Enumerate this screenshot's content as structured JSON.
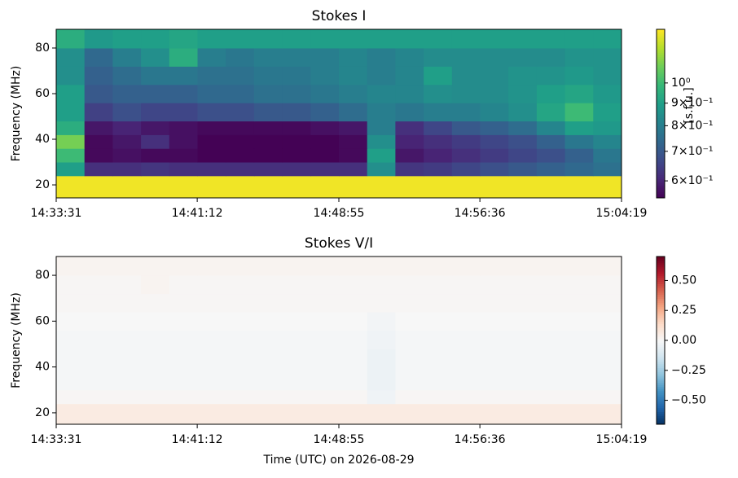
{
  "chart_data": [
    {
      "type": "heatmap",
      "title": "Stokes I",
      "y_label": "Frequency (MHz)",
      "x_edges": [
        0,
        92.4,
        184.8,
        277.2,
        369.6,
        462,
        554.4,
        646.8,
        739.2,
        831.6,
        924,
        1016.4,
        1108.8,
        1201.2,
        1293.6,
        1386,
        1478.4,
        1570.8,
        1663.2,
        1755.6,
        1848
      ],
      "y_edges": [
        14.3,
        24,
        30,
        36,
        42,
        48,
        56,
        64,
        72,
        80,
        88.2
      ],
      "z": [
        [
          1.3,
          1.3,
          1.3,
          1.3,
          1.3,
          1.3,
          1.3,
          1.3,
          1.3,
          1.3,
          1.3,
          1.3,
          1.3,
          1.3,
          1.3,
          1.3,
          1.3,
          1.3,
          1.3,
          1.3
        ],
        [
          0.9,
          0.62,
          0.62,
          0.63,
          0.62,
          0.62,
          0.62,
          0.62,
          0.62,
          0.62,
          0.62,
          0.85,
          0.63,
          0.64,
          0.66,
          0.68,
          0.7,
          0.72,
          0.74,
          0.76
        ],
        [
          1.0,
          0.56,
          0.57,
          0.56,
          0.56,
          0.55,
          0.55,
          0.55,
          0.55,
          0.55,
          0.56,
          0.9,
          0.58,
          0.6,
          0.62,
          0.64,
          0.66,
          0.68,
          0.72,
          0.78
        ],
        [
          1.1,
          0.56,
          0.58,
          0.62,
          0.57,
          0.55,
          0.55,
          0.55,
          0.55,
          0.55,
          0.56,
          0.85,
          0.6,
          0.62,
          0.64,
          0.66,
          0.68,
          0.72,
          0.78,
          0.82
        ],
        [
          0.95,
          0.58,
          0.6,
          0.58,
          0.57,
          0.56,
          0.56,
          0.56,
          0.56,
          0.57,
          0.58,
          0.8,
          0.62,
          0.66,
          0.7,
          0.72,
          0.75,
          0.82,
          0.9,
          0.88
        ],
        [
          0.9,
          0.65,
          0.68,
          0.66,
          0.66,
          0.68,
          0.68,
          0.7,
          0.7,
          0.72,
          0.75,
          0.8,
          0.78,
          0.8,
          0.8,
          0.82,
          0.85,
          0.92,
          1.0,
          0.9
        ],
        [
          0.9,
          0.7,
          0.72,
          0.72,
          0.72,
          0.74,
          0.74,
          0.76,
          0.76,
          0.78,
          0.8,
          0.82,
          0.82,
          0.85,
          0.84,
          0.84,
          0.86,
          0.9,
          0.92,
          0.88
        ],
        [
          0.85,
          0.72,
          0.75,
          0.78,
          0.78,
          0.76,
          0.76,
          0.78,
          0.78,
          0.8,
          0.82,
          0.8,
          0.82,
          0.9,
          0.84,
          0.84,
          0.86,
          0.86,
          0.88,
          0.86
        ],
        [
          0.85,
          0.74,
          0.8,
          0.85,
          0.95,
          0.8,
          0.78,
          0.8,
          0.8,
          0.8,
          0.82,
          0.8,
          0.82,
          0.84,
          0.84,
          0.84,
          0.84,
          0.84,
          0.86,
          0.86
        ],
        [
          0.95,
          0.88,
          0.9,
          0.9,
          0.92,
          0.9,
          0.9,
          0.9,
          0.9,
          0.9,
          0.9,
          0.9,
          0.9,
          0.9,
          0.9,
          0.9,
          0.9,
          0.9,
          0.9,
          0.9
        ]
      ],
      "xlim": [
        0,
        1848
      ],
      "ylim": [
        14.3,
        88.2
      ],
      "xticks": [
        {
          "value": 0,
          "label": "14:33:31"
        },
        {
          "value": 461,
          "label": "14:41:12"
        },
        {
          "value": 924,
          "label": "14:48:55"
        },
        {
          "value": 1385,
          "label": "14:56:36"
        },
        {
          "value": 1848,
          "label": "15:04:19"
        }
      ],
      "yticks": [
        20,
        40,
        60,
        80
      ],
      "colorbar": {
        "cmap": "viridis",
        "scale": "log",
        "lim": [
          0.549,
          1.323
        ],
        "label": "[s.f.u.]",
        "ticks": [
          {
            "value": 1,
            "label": "10⁰"
          },
          {
            "value": 0.9,
            "label": "9×10⁻¹"
          },
          {
            "value": 0.8,
            "label": "8×10⁻¹"
          },
          {
            "value": 0.7,
            "label": "7×10⁻¹"
          },
          {
            "value": 0.6,
            "label": "6×10⁻¹"
          }
        ]
      }
    },
    {
      "type": "heatmap",
      "title": "Stokes V/I",
      "y_label": "Frequency (MHz)",
      "x_label": "Time (UTC) on 2026-08-29",
      "x_edges": [
        0,
        92.4,
        184.8,
        277.2,
        369.6,
        462,
        554.4,
        646.8,
        739.2,
        831.6,
        924,
        1016.4,
        1108.8,
        1201.2,
        1293.6,
        1386,
        1478.4,
        1570.8,
        1663.2,
        1755.6,
        1848
      ],
      "y_edges": [
        15.0,
        24,
        30,
        36,
        42,
        48,
        56,
        64,
        72,
        80,
        88.2
      ],
      "z": [
        [
          0.06,
          0.06,
          0.06,
          0.06,
          0.06,
          0.06,
          0.06,
          0.06,
          0.06,
          0.06,
          0.06,
          0.06,
          0.06,
          0.06,
          0.06,
          0.06,
          0.06,
          0.06,
          0.06,
          0.06
        ],
        [
          0.01,
          0.01,
          0.01,
          0.01,
          0.01,
          0.01,
          0.01,
          0.01,
          0.01,
          0.01,
          0.01,
          -0.03,
          0.01,
          0.01,
          0.01,
          0.01,
          0.01,
          0.01,
          0.01,
          0.01
        ],
        [
          -0.01,
          -0.01,
          -0.01,
          -0.01,
          -0.01,
          -0.01,
          -0.01,
          -0.01,
          -0.01,
          -0.01,
          -0.01,
          -0.04,
          -0.01,
          -0.01,
          -0.01,
          -0.01,
          -0.01,
          -0.01,
          -0.01,
          -0.01
        ],
        [
          -0.01,
          -0.01,
          -0.01,
          -0.01,
          -0.01,
          -0.01,
          -0.01,
          -0.01,
          -0.01,
          -0.01,
          -0.01,
          -0.04,
          -0.01,
          -0.01,
          -0.01,
          -0.01,
          -0.01,
          -0.01,
          -0.01,
          -0.01
        ],
        [
          -0.01,
          -0.01,
          -0.01,
          -0.01,
          -0.01,
          -0.01,
          -0.01,
          -0.01,
          -0.01,
          -0.01,
          -0.01,
          -0.04,
          -0.01,
          -0.01,
          -0.01,
          -0.01,
          -0.01,
          -0.01,
          -0.01,
          -0.01
        ],
        [
          -0.01,
          -0.01,
          -0.01,
          -0.01,
          -0.01,
          -0.01,
          -0.01,
          -0.01,
          -0.01,
          -0.01,
          -0.01,
          -0.03,
          -0.01,
          -0.01,
          -0.01,
          -0.01,
          -0.01,
          -0.01,
          -0.01,
          -0.01
        ],
        [
          0.0,
          0.0,
          0.0,
          0.0,
          0.0,
          0.0,
          0.0,
          0.0,
          0.0,
          0.0,
          0.0,
          -0.02,
          0.0,
          0.0,
          0.0,
          0.0,
          0.0,
          0.0,
          0.0,
          0.0
        ],
        [
          0.01,
          0.01,
          0.01,
          0.01,
          0.01,
          0.01,
          0.01,
          0.01,
          0.01,
          0.01,
          0.01,
          0.01,
          0.01,
          0.01,
          0.01,
          0.01,
          0.01,
          0.01,
          0.01,
          0.01
        ],
        [
          0.01,
          0.01,
          0.01,
          0.02,
          0.01,
          0.01,
          0.01,
          0.01,
          0.01,
          0.01,
          0.01,
          0.01,
          0.01,
          0.01,
          0.01,
          0.01,
          0.01,
          0.01,
          0.01,
          0.01
        ],
        [
          0.02,
          0.02,
          0.02,
          0.02,
          0.02,
          0.02,
          0.02,
          0.02,
          0.02,
          0.02,
          0.02,
          0.02,
          0.02,
          0.02,
          0.02,
          0.02,
          0.02,
          0.02,
          0.02,
          0.02
        ]
      ],
      "xlim": [
        0,
        1848
      ],
      "ylim": [
        15.0,
        88.2
      ],
      "xticks": [
        {
          "value": 0,
          "label": "14:33:31"
        },
        {
          "value": 461,
          "label": "14:41:12"
        },
        {
          "value": 924,
          "label": "14:48:55"
        },
        {
          "value": 1385,
          "label": "14:56:36"
        },
        {
          "value": 1848,
          "label": "15:04:19"
        }
      ],
      "yticks": [
        20,
        40,
        60,
        80
      ],
      "colorbar": {
        "cmap": "RdBu_r",
        "scale": "linear",
        "lim": [
          -0.7,
          0.7
        ],
        "ticks": [
          {
            "value": 0.5,
            "label": "0.50"
          },
          {
            "value": 0.25,
            "label": "0.25"
          },
          {
            "value": 0,
            "label": "0.00"
          },
          {
            "value": -0.25,
            "label": "−0.25"
          },
          {
            "value": -0.5,
            "label": "−0.50"
          }
        ]
      }
    }
  ]
}
